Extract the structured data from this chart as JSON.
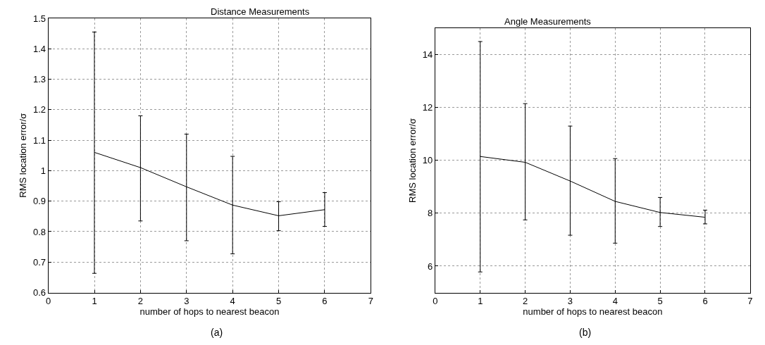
{
  "chart_data": [
    {
      "type": "line",
      "title": "Distance Measurements",
      "xlabel": "number of hops to nearest beacon",
      "ylabel": "RMS location error/σ",
      "annotations": [
        "(a)"
      ],
      "x": [
        1,
        2,
        3,
        4,
        5,
        6
      ],
      "series": [
        {
          "color": "#000000",
          "values": [
            1.06,
            1.01,
            0.947,
            0.887,
            0.852,
            0.872
          ],
          "errors": [
            [
              0.663,
              1.455
            ],
            [
              0.835,
              1.18
            ],
            [
              0.77,
              1.12
            ],
            [
              0.727,
              1.047
            ],
            [
              0.803,
              0.898
            ],
            [
              0.817,
              0.928
            ]
          ]
        }
      ],
      "xlim": [
        0,
        7
      ],
      "ylim": [
        0.6,
        1.5
      ],
      "xticks": [
        0,
        1,
        2,
        3,
        4,
        5,
        6,
        7
      ],
      "yticks": [
        0.6,
        0.7,
        0.8,
        0.9,
        1,
        1.1,
        1.2,
        1.3,
        1.4,
        1.5
      ],
      "grid": true
    },
    {
      "type": "line",
      "title": "Angle Measurements",
      "xlabel": "number of hops to nearest beacon",
      "ylabel": "RMS location error/σ",
      "annotations": [
        "(b)"
      ],
      "x": [
        1,
        2,
        3,
        4,
        5,
        6
      ],
      "series": [
        {
          "color": "#000000",
          "values": [
            10.15,
            9.93,
            9.22,
            8.45,
            8.03,
            7.85
          ],
          "errors": [
            [
              5.78,
              14.5
            ],
            [
              7.75,
              12.15
            ],
            [
              7.17,
              11.3
            ],
            [
              6.87,
              10.07
            ],
            [
              7.5,
              8.6
            ],
            [
              7.6,
              8.12
            ]
          ]
        }
      ],
      "xlim": [
        0,
        7
      ],
      "ylim": [
        5,
        15
      ],
      "xticks": [
        0,
        1,
        2,
        3,
        4,
        5,
        6,
        7
      ],
      "yticks": [
        6,
        8,
        10,
        12,
        14
      ],
      "grid": true
    }
  ]
}
